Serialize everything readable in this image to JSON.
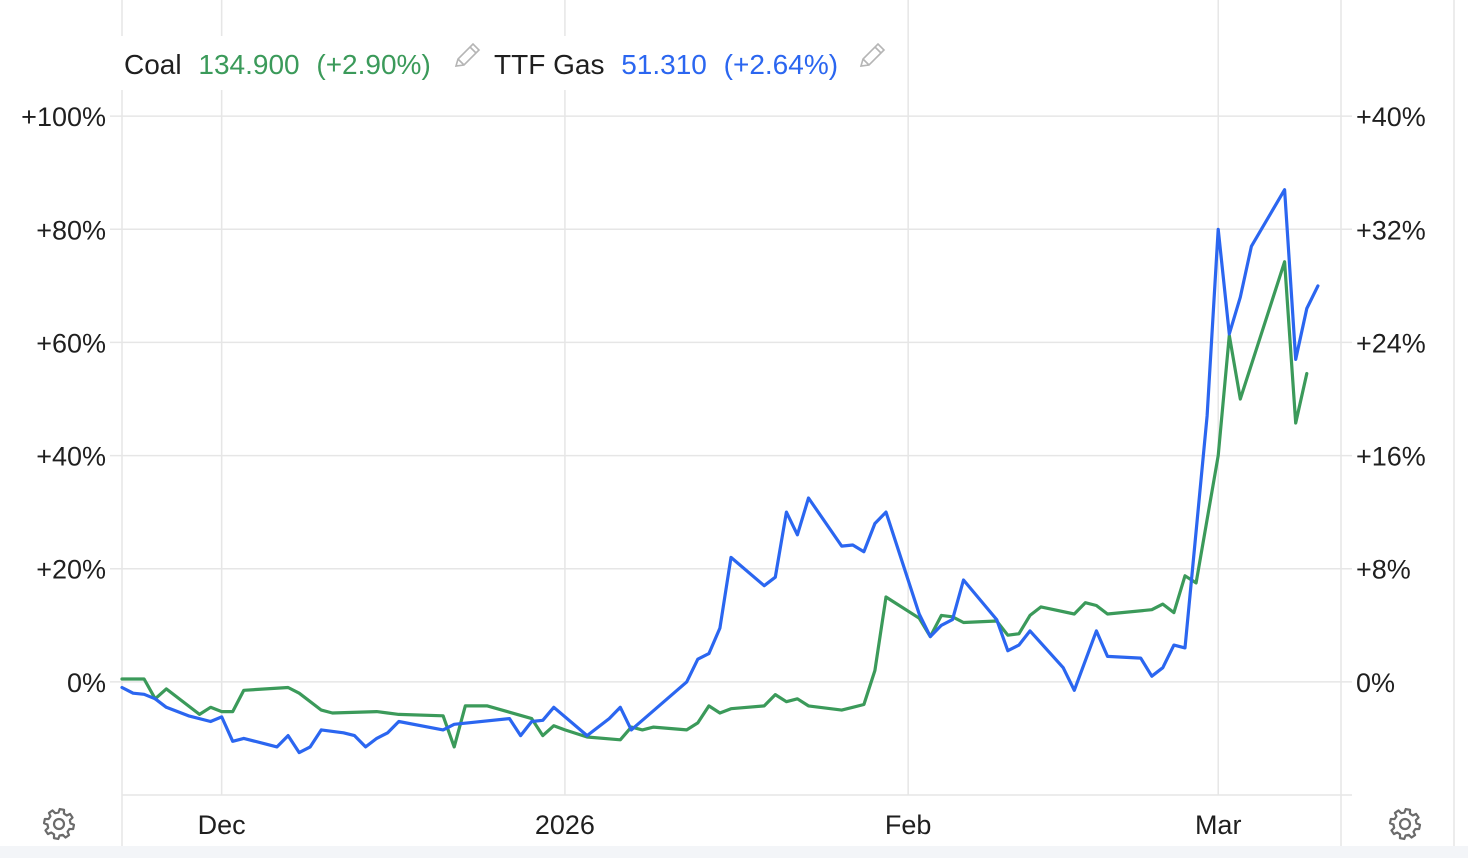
{
  "legend": [
    {
      "name": "Coal",
      "value": "134.900",
      "change": "(+2.90%)",
      "color": "#3b9a5a"
    },
    {
      "name": "TTF Gas",
      "value": "51.310",
      "change": "(+2.64%)",
      "color": "#2b66f0"
    }
  ],
  "colors": {
    "grid": "#e6e6e6",
    "bottom_strip": "#f3f5f8",
    "axis_text": "#1f1f1f",
    "icon": "#6b6b6b"
  },
  "icons": [
    "pencil-icon",
    "gear-icon"
  ],
  "chart_data": {
    "type": "line",
    "left_axis": {
      "ticks": [
        "+100%",
        "+80%",
        "+60%",
        "+40%",
        "+20%",
        "0%"
      ],
      "range": [
        -20,
        120
      ]
    },
    "right_axis": {
      "ticks": [
        "+40%",
        "+32%",
        "+24%",
        "+16%",
        "+8%",
        "0%"
      ],
      "range": [
        -8,
        48
      ]
    },
    "x_axis": {
      "ticks": [
        "Dec",
        "2026",
        "Feb",
        "Mar"
      ],
      "range": [
        "2025-11-22",
        "2026-03-12"
      ]
    },
    "grid": true,
    "series": [
      {
        "name": "TTF Gas",
        "axis": "left",
        "color": "#2b66f0",
        "points": [
          [
            "2025-11-22",
            -1
          ],
          [
            "2025-11-23",
            -2
          ],
          [
            "2025-11-24",
            -2.2
          ],
          [
            "2025-11-25",
            -3
          ],
          [
            "2025-11-26",
            -4.5
          ],
          [
            "2025-11-28",
            -6
          ],
          [
            "2025-11-30",
            -7
          ],
          [
            "2025-12-01",
            -6.2
          ],
          [
            "2025-12-02",
            -10.5
          ],
          [
            "2025-12-03",
            -10
          ],
          [
            "2025-12-05",
            -11
          ],
          [
            "2025-12-06",
            -11.5
          ],
          [
            "2025-12-07",
            -9.5
          ],
          [
            "2025-12-08",
            -12.5
          ],
          [
            "2025-12-09",
            -11.5
          ],
          [
            "2025-12-10",
            -8.5
          ],
          [
            "2025-12-12",
            -9
          ],
          [
            "2025-12-13",
            -9.5
          ],
          [
            "2025-12-14",
            -11.5
          ],
          [
            "2025-12-15",
            -10
          ],
          [
            "2025-12-16",
            -9
          ],
          [
            "2025-12-17",
            -7
          ],
          [
            "2025-12-21",
            -8.5
          ],
          [
            "2025-12-22",
            -7.5
          ],
          [
            "2025-12-27",
            -6.5
          ],
          [
            "2025-12-28",
            -9.5
          ],
          [
            "2025-12-29",
            -7
          ],
          [
            "2025-12-30",
            -6.8
          ],
          [
            "2025-12-31",
            -4.5
          ],
          [
            "2026-01-03",
            -9.5
          ],
          [
            "2026-01-05",
            -6.5
          ],
          [
            "2026-01-06",
            -4.5
          ],
          [
            "2026-01-07",
            -8.5
          ],
          [
            "2026-01-12",
            0
          ],
          [
            "2026-01-13",
            4
          ],
          [
            "2026-01-14",
            5
          ],
          [
            "2026-01-15",
            9.5
          ],
          [
            "2026-01-16",
            22
          ],
          [
            "2026-01-19",
            17
          ],
          [
            "2026-01-20",
            18.5
          ],
          [
            "2026-01-21",
            30
          ],
          [
            "2026-01-22",
            26
          ],
          [
            "2026-01-23",
            32.5
          ],
          [
            "2026-01-26",
            24
          ],
          [
            "2026-01-27",
            24.2
          ],
          [
            "2026-01-28",
            23
          ],
          [
            "2026-01-29",
            28
          ],
          [
            "2026-01-30",
            30
          ],
          [
            "2026-02-02",
            12
          ],
          [
            "2026-02-03",
            8
          ],
          [
            "2026-02-04",
            10
          ],
          [
            "2026-02-05",
            11
          ],
          [
            "2026-02-06",
            18
          ],
          [
            "2026-02-09",
            11
          ],
          [
            "2026-02-10",
            5.5
          ],
          [
            "2026-02-11",
            6.5
          ],
          [
            "2026-02-12",
            9
          ],
          [
            "2026-02-15",
            2.5
          ],
          [
            "2026-02-16",
            -1.5
          ],
          [
            "2026-02-18",
            9
          ],
          [
            "2026-02-19",
            4.5
          ],
          [
            "2026-02-22",
            4.2
          ],
          [
            "2026-02-23",
            1
          ],
          [
            "2026-02-24",
            2.5
          ],
          [
            "2026-02-25",
            6.5
          ],
          [
            "2026-02-26",
            6
          ],
          [
            "2026-02-28",
            47
          ],
          [
            "2026-03-01",
            80
          ],
          [
            "2026-03-02",
            61.5
          ],
          [
            "2026-03-03",
            68
          ],
          [
            "2026-03-04",
            77
          ],
          [
            "2026-03-07",
            87
          ],
          [
            "2026-03-08",
            57
          ],
          [
            "2026-03-09",
            66
          ],
          [
            "2026-03-10",
            70
          ]
        ]
      },
      {
        "name": "Coal",
        "axis": "right",
        "color": "#3b9a5a",
        "points": [
          [
            "2025-11-22",
            0.2
          ],
          [
            "2025-11-24",
            0.2
          ],
          [
            "2025-11-25",
            -1.2
          ],
          [
            "2025-11-26",
            -0.5
          ],
          [
            "2025-11-29",
            -2.3
          ],
          [
            "2025-11-30",
            -1.8
          ],
          [
            "2025-12-01",
            -2.1
          ],
          [
            "2025-12-02",
            -2.1
          ],
          [
            "2025-12-03",
            -0.6
          ],
          [
            "2025-12-07",
            -0.4
          ],
          [
            "2025-12-08",
            -0.8
          ],
          [
            "2025-12-10",
            -2
          ],
          [
            "2025-12-11",
            -2.2
          ],
          [
            "2025-12-15",
            -2.1
          ],
          [
            "2025-12-16",
            -2.2
          ],
          [
            "2025-12-17",
            -2.3
          ],
          [
            "2025-12-21",
            -2.4
          ],
          [
            "2025-12-22",
            -4.6
          ],
          [
            "2025-12-23",
            -1.7
          ],
          [
            "2025-12-25",
            -1.7
          ],
          [
            "2025-12-29",
            -2.6
          ],
          [
            "2025-12-30",
            -3.8
          ],
          [
            "2025-12-31",
            -3.1
          ],
          [
            "2026-01-01",
            -3.4
          ],
          [
            "2026-01-03",
            -3.9
          ],
          [
            "2026-01-06",
            -4.1
          ],
          [
            "2026-01-07",
            -3.2
          ],
          [
            "2026-01-08",
            -3.4
          ],
          [
            "2026-01-09",
            -3.2
          ],
          [
            "2026-01-12",
            -3.4
          ],
          [
            "2026-01-13",
            -2.9
          ],
          [
            "2026-01-14",
            -1.7
          ],
          [
            "2026-01-15",
            -2.2
          ],
          [
            "2026-01-16",
            -1.9
          ],
          [
            "2026-01-19",
            -1.7
          ],
          [
            "2026-01-20",
            -0.9
          ],
          [
            "2026-01-21",
            -1.4
          ],
          [
            "2026-01-22",
            -1.2
          ],
          [
            "2026-01-23",
            -1.7
          ],
          [
            "2026-01-26",
            -2
          ],
          [
            "2026-01-27",
            -1.8
          ],
          [
            "2026-01-28",
            -1.6
          ],
          [
            "2026-01-29",
            0.8
          ],
          [
            "2026-01-30",
            6
          ],
          [
            "2026-02-02",
            4.5
          ],
          [
            "2026-02-03",
            3.2
          ],
          [
            "2026-02-04",
            4.7
          ],
          [
            "2026-02-05",
            4.6
          ],
          [
            "2026-02-06",
            4.2
          ],
          [
            "2026-02-09",
            4.3
          ],
          [
            "2026-02-10",
            3.3
          ],
          [
            "2026-02-11",
            3.4
          ],
          [
            "2026-02-12",
            4.7
          ],
          [
            "2026-02-13",
            5.3
          ],
          [
            "2026-02-16",
            4.8
          ],
          [
            "2026-02-17",
            5.6
          ],
          [
            "2026-02-18",
            5.4
          ],
          [
            "2026-02-19",
            4.8
          ],
          [
            "2026-02-23",
            5.1
          ],
          [
            "2026-02-24",
            5.5
          ],
          [
            "2026-02-25",
            4.9
          ],
          [
            "2026-02-26",
            7.5
          ],
          [
            "2026-02-27",
            7
          ],
          [
            "2026-03-01",
            16
          ],
          [
            "2026-03-02",
            24.5
          ],
          [
            "2026-03-03",
            20
          ],
          [
            "2026-03-07",
            29.7
          ],
          [
            "2026-03-08",
            18.3
          ],
          [
            "2026-03-09",
            21.8
          ]
        ]
      }
    ]
  }
}
